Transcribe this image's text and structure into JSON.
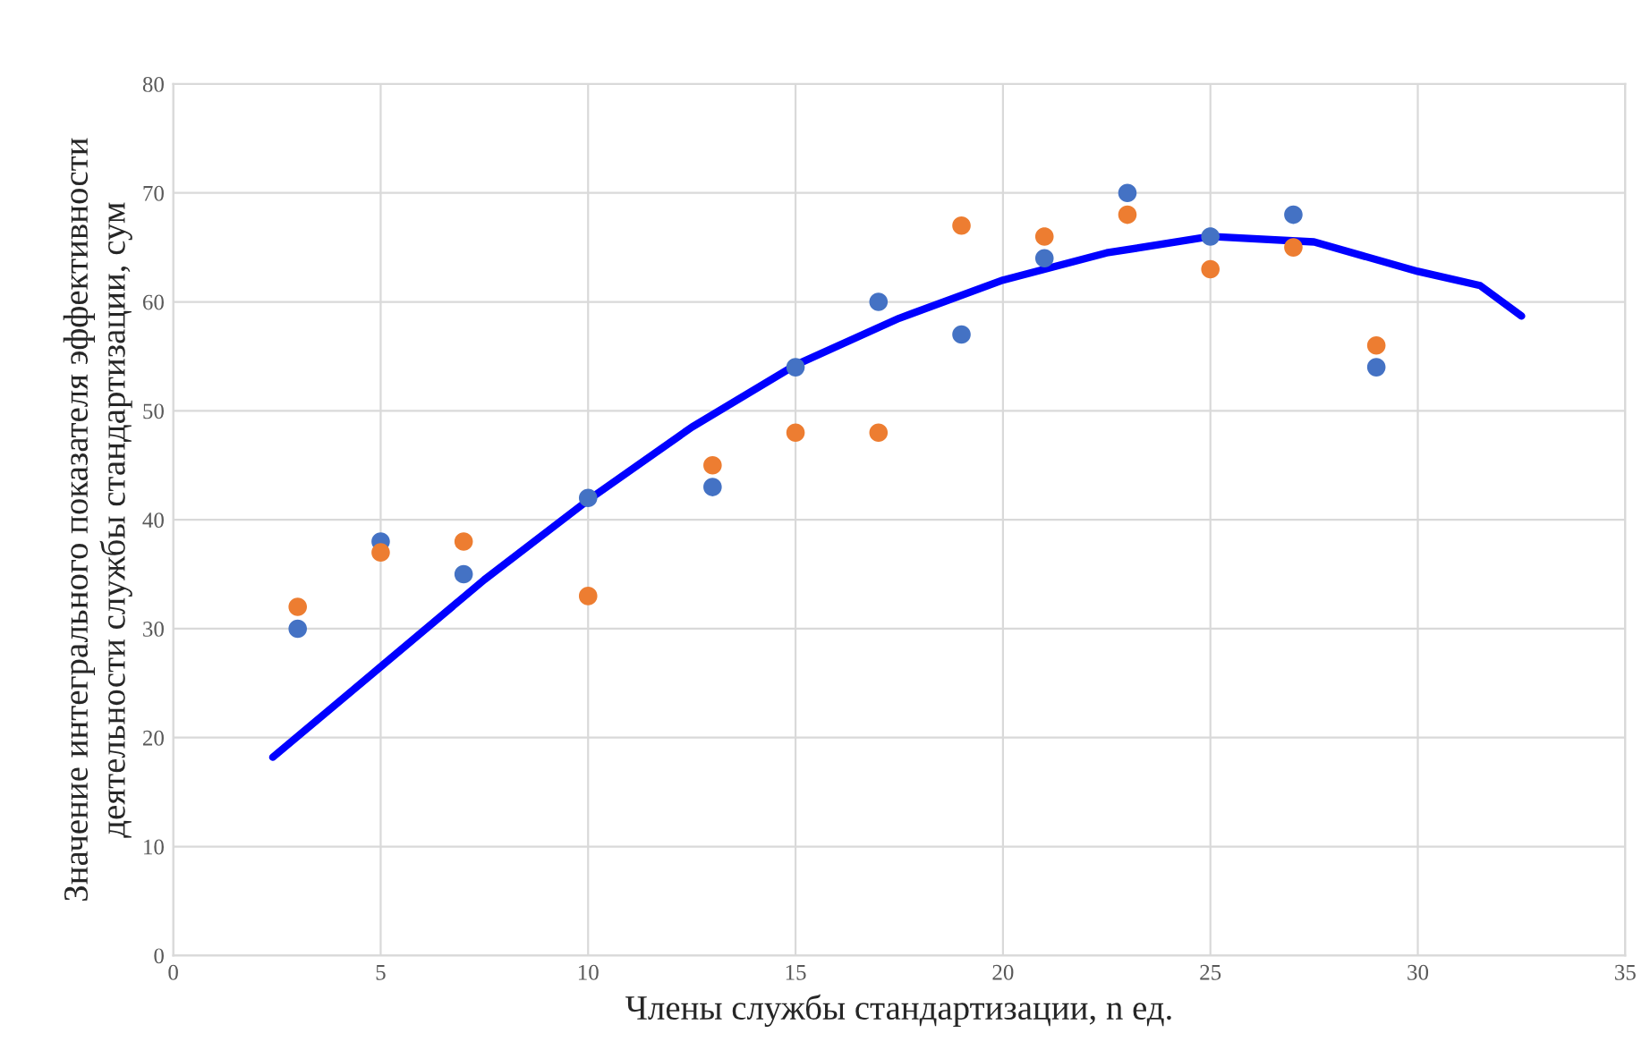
{
  "chart_data": {
    "type": "scatter",
    "xlabel": "Члены службы стандартизации, n ед.",
    "ylabel": "Значение интегрального показателя эффективности\nдеятельности службы стандартизации, сум",
    "xlim": [
      0,
      35
    ],
    "xticks": [
      0,
      5,
      10,
      15,
      20,
      25,
      30,
      35
    ],
    "ylim": [
      0,
      80
    ],
    "yticks": [
      0,
      10,
      20,
      30,
      40,
      50,
      60,
      70,
      80
    ],
    "grid": true,
    "marker": "circle",
    "series": [
      {
        "color": "#4472c4",
        "x": [
          3,
          5,
          7,
          10,
          13,
          15,
          17,
          19,
          21,
          23,
          25,
          27,
          29
        ],
        "values": [
          30,
          38,
          35,
          42,
          43,
          54,
          60,
          57,
          64,
          70,
          66,
          68,
          54
        ]
      },
      {
        "color": "#ed7d31",
        "x": [
          3,
          5,
          7,
          10,
          13,
          15,
          17,
          19,
          21,
          23,
          25,
          27,
          29
        ],
        "values": [
          32,
          37,
          38,
          33,
          45,
          48,
          48,
          67,
          66,
          68,
          63,
          65,
          56
        ]
      },
      {
        "type": "line",
        "color": "#0000ff",
        "marker": "none",
        "line_style": "solid",
        "x": [
          2.4,
          5,
          7.5,
          10,
          12.5,
          15,
          17.5,
          20,
          22.5,
          25,
          27.5,
          30,
          31.5,
          32.5
        ],
        "values": [
          18.2,
          26.5,
          34.5,
          41.8,
          48.5,
          54.2,
          58.5,
          62,
          64.5,
          66,
          65.5,
          62.8,
          61.5,
          58.7
        ]
      }
    ]
  }
}
